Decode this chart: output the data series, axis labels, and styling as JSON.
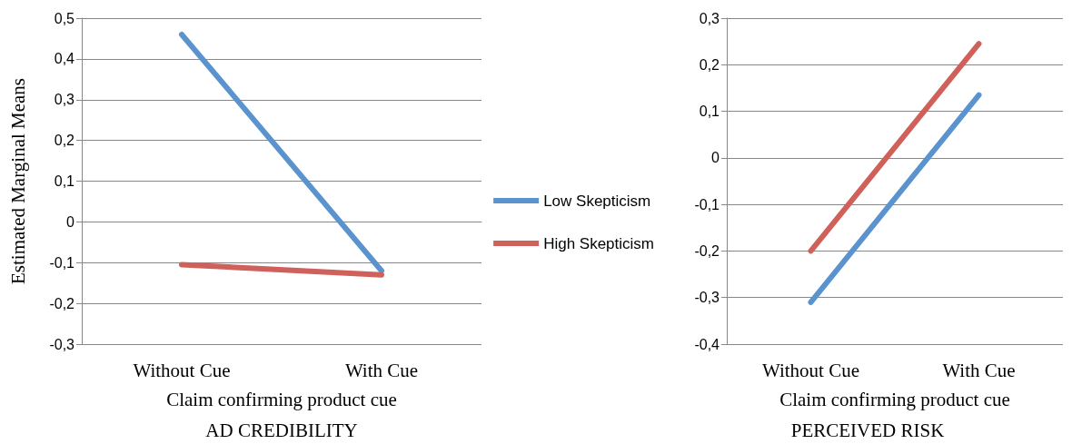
{
  "chart_data": [
    {
      "type": "line",
      "title": "AD CREDIBILITY",
      "xlabel": "Claim confirming product cue",
      "ylabel": "Estimated Marginal Means",
      "categories": [
        "Without Cue",
        "With Cue"
      ],
      "series": [
        {
          "name": "Low Skepticism",
          "color": "#5b93cf",
          "values": [
            0.46,
            -0.12
          ]
        },
        {
          "name": "High Skepticism",
          "color": "#d0605a",
          "values": [
            -0.105,
            -0.13
          ]
        }
      ],
      "ylim": [
        -0.3,
        0.5
      ],
      "yticks": [
        {
          "value": -0.3,
          "label": "-0,3"
        },
        {
          "value": -0.2,
          "label": "-0,2"
        },
        {
          "value": -0.1,
          "label": "-0,1"
        },
        0,
        {
          "value": 0.1,
          "label": "0,1"
        },
        {
          "value": 0.2,
          "label": "0,2"
        },
        {
          "value": 0.3,
          "label": "0,3"
        },
        {
          "value": 0.4,
          "label": "0,4"
        },
        {
          "value": 0.5,
          "label": "0,5"
        }
      ],
      "grid": "y",
      "legend": "right",
      "marker": "none",
      "line_style": "solid"
    },
    {
      "type": "line",
      "title": "PERCEIVED RISK",
      "xlabel": "Claim confirming product cue",
      "categories": [
        "Without Cue",
        "With Cue"
      ],
      "series": [
        {
          "color": "#5b93cf",
          "values": [
            -0.31,
            0.135
          ]
        },
        {
          "color": "#d0605a",
          "values": [
            -0.2,
            0.245
          ]
        }
      ],
      "ylim": [
        -0.4,
        0.3
      ],
      "yticks": [
        {
          "value": -0.4,
          "label": "-0,4"
        },
        {
          "value": -0.3,
          "label": "-0,3"
        },
        {
          "value": -0.2,
          "label": "-0,2"
        },
        {
          "value": -0.1,
          "label": "-0,1"
        },
        0,
        {
          "value": 0.1,
          "label": "0,1"
        },
        {
          "value": 0.2,
          "label": "0,2"
        },
        {
          "value": 0.3,
          "label": "0,3"
        }
      ],
      "grid": "y",
      "legend": false,
      "marker": "none",
      "line_style": "solid"
    }
  ]
}
